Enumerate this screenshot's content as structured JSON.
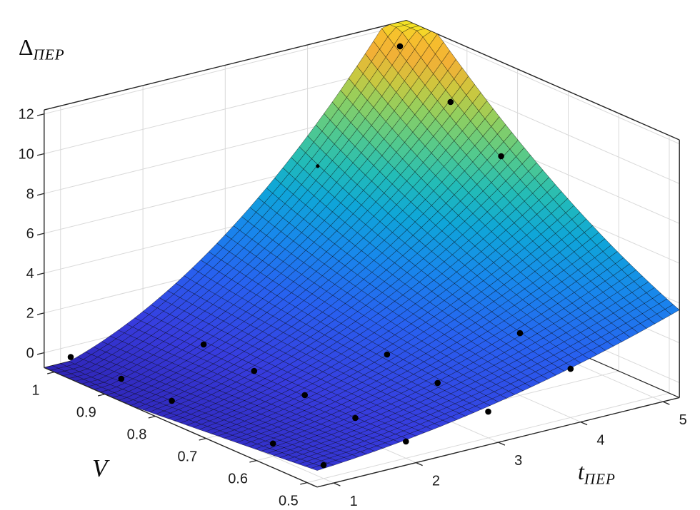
{
  "chart_data": {
    "type": "surface",
    "title": "",
    "x_axis": {
      "label_main": "t",
      "label_sub": "ПЕР",
      "ticks": [
        1,
        2,
        3,
        4,
        5
      ],
      "lim": [
        0.8,
        5.2
      ]
    },
    "y_axis": {
      "label": "V",
      "ticks": [
        1,
        0.9,
        0.8,
        0.7,
        0.6,
        0.5
      ],
      "lim": [
        0.48,
        1.02
      ]
    },
    "z_axis": {
      "label_main": "Δ",
      "label_sub": "ПЕР",
      "ticks": [
        0,
        2,
        4,
        6,
        8,
        10,
        12
      ],
      "lim": [
        -0.75,
        12.2
      ]
    },
    "surface": {
      "description": "fitted response surface z = a*t^2*V^2 + b*t + c*V + d over t=[0.8,5.2], V=[0.48,1.02], clipped to z-axis limits",
      "coeffs": {
        "a": 0.53,
        "b": 0.079,
        "c": -2.696,
        "d": 1.236
      },
      "grid_n": 44,
      "colormap": "parula",
      "c_range": [
        -1.1,
        12.7
      ]
    },
    "scatter_points": [
      {
        "t": 1,
        "v": 1.0,
        "z": -0.2
      },
      {
        "t": 1,
        "v": 0.9,
        "z": -0.18
      },
      {
        "t": 1,
        "v": 0.8,
        "z": -0.18
      },
      {
        "t": 1,
        "v": 0.6,
        "z": -0.1
      },
      {
        "t": 1,
        "v": 0.5,
        "z": -0.07
      },
      {
        "t": 2,
        "v": 0.9,
        "z": 0.52
      },
      {
        "t": 2,
        "v": 0.8,
        "z": 0.3
      },
      {
        "t": 2,
        "v": 0.7,
        "z": 0.2
      },
      {
        "t": 2,
        "v": 0.6,
        "z": 0.16
      },
      {
        "t": 2,
        "v": 0.5,
        "z": 0.09
      },
      {
        "t": 3,
        "v": 0.7,
        "z": 1.22
      },
      {
        "t": 3,
        "v": 0.6,
        "z": 0.9
      },
      {
        "t": 3,
        "v": 0.5,
        "z": 0.57
      },
      {
        "t": 4,
        "v": 1.0,
        "z": 6.33,
        "small": true
      },
      {
        "t": 4,
        "v": 0.6,
        "z": 2.38
      },
      {
        "t": 4,
        "v": 0.5,
        "z": 1.7
      },
      {
        "t": 5,
        "v": 1.0,
        "z": 11.33
      },
      {
        "t": 5,
        "v": 0.9,
        "z": 9.64
      },
      {
        "t": 5,
        "v": 0.8,
        "z": 8.03
      }
    ],
    "view": {
      "origin": [
        453,
        650
      ],
      "per_t": [
        115.25,
        -28.5
      ],
      "per_v": [
        -708,
        -310
      ],
      "per_z": [
        0,
        -27.9
      ]
    },
    "style": {
      "background": "#ffffff",
      "grid_color": "#d9d9d9",
      "axis_color": "#262626",
      "tick_label_color": "#1c1c1c",
      "tick_font_size": 20,
      "marker_color": "#000000",
      "mesh_edge": "rgba(0,0,0,0.55)",
      "colormap_anchors": [
        [
          0.0,
          [
            47,
            36,
            180
          ]
        ],
        [
          0.12,
          [
            55,
            60,
            222
          ]
        ],
        [
          0.25,
          [
            40,
            96,
            240
          ]
        ],
        [
          0.37,
          [
            24,
            135,
            236
          ]
        ],
        [
          0.48,
          [
            15,
            166,
            216
          ]
        ],
        [
          0.57,
          [
            35,
            188,
            183
          ]
        ],
        [
          0.66,
          [
            85,
            202,
            140
          ]
        ],
        [
          0.75,
          [
            145,
            207,
            95
          ]
        ],
        [
          0.82,
          [
            205,
            199,
            62
          ]
        ],
        [
          0.89,
          [
            242,
            176,
            54
          ]
        ],
        [
          0.94,
          [
            246,
            189,
            46
          ]
        ],
        [
          1.0,
          [
            244,
            226,
            38
          ]
        ]
      ]
    }
  }
}
